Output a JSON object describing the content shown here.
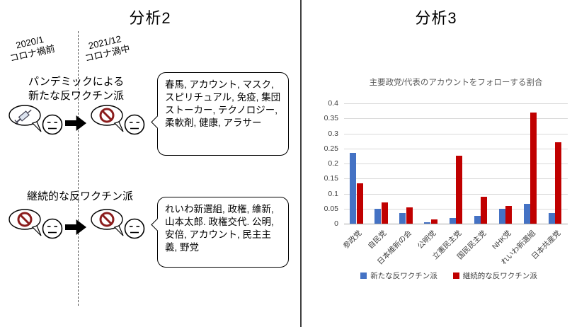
{
  "left": {
    "title": "分析2",
    "timeline": {
      "before": "2020/1\nコロナ禍前",
      "after": "2021/12\nコロナ渦中"
    },
    "group1": {
      "label": "パンデミックによる\n新たな反ワクチン派",
      "keywords": "春馬, アカウント, マスク, スピリチュアル, 免疫, 集団ストーカー, テクノロジー, 柔軟剤, 健康, アラサー"
    },
    "group2": {
      "label": "継続的な反ワクチン派",
      "keywords": "れいわ新選組, 政権, 維新, 山本太郎. 政権交代. 公明, 安倍, アカウント, 民主主義, 野党"
    },
    "colors": {
      "no_entry_sign": "#8b1d1d"
    }
  },
  "right": {
    "title": "分析3"
  },
  "chart_data": {
    "type": "bar",
    "title": "主要政党/代表のアカウントをフォローする割合",
    "categories": [
      "参政党",
      "自民党",
      "日本維新の会",
      "公明党",
      "立憲民主党",
      "国民民主党",
      "NHK党",
      "れいわ新選組",
      "日本共産党"
    ],
    "series": [
      {
        "name": "新たな反ワクチン派",
        "color": "#4472c4",
        "values": [
          0.235,
          0.05,
          0.035,
          0.005,
          0.02,
          0.025,
          0.05,
          0.065,
          0.035
        ]
      },
      {
        "name": "継続的な反ワクチン派",
        "color": "#c00000",
        "values": [
          0.135,
          0.07,
          0.055,
          0.015,
          0.225,
          0.09,
          0.06,
          0.37,
          0.27
        ]
      }
    ],
    "xlabel": "",
    "ylabel": "",
    "ylim": [
      0,
      0.4
    ],
    "yticks": [
      0,
      0.05,
      0.1,
      0.15,
      0.2,
      0.25,
      0.3,
      0.35,
      0.4
    ],
    "grid": true,
    "legend_position": "bottom"
  }
}
